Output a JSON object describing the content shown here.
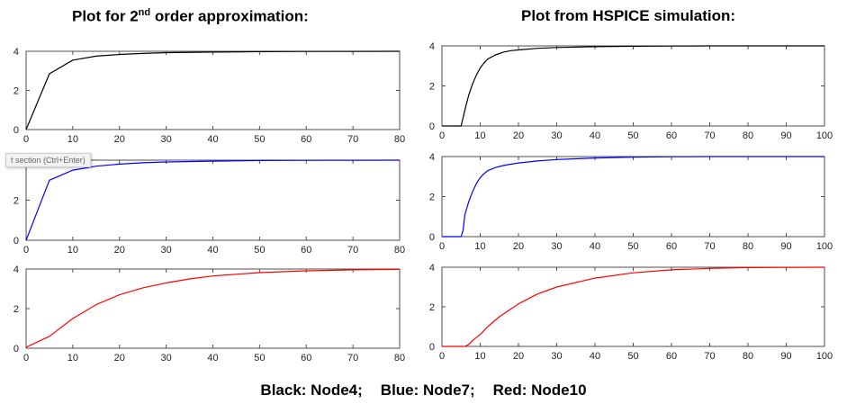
{
  "headings": {
    "left_prefix": "Plot for 2",
    "left_sup": "nd",
    "left_suffix": " order approximation:",
    "right": "Plot from HSPICE simulation:"
  },
  "tooltip": {
    "text": "t section (Ctrl+Enter)"
  },
  "legend_caption": {
    "black": "Black: Node4;",
    "blue": "Blue: Node7;",
    "red": "Red: Node10"
  },
  "colors": {
    "black": "#000000",
    "blue": "#0000ff",
    "red": "#ff0000"
  },
  "chart_data": [
    {
      "type": "line",
      "title": "",
      "xlabel": "",
      "ylabel": "",
      "xlim": [
        0,
        80
      ],
      "ylim": [
        0,
        4
      ],
      "xticks": [
        0,
        10,
        20,
        30,
        40,
        50,
        60,
        70,
        80
      ],
      "yticks": [
        0,
        2,
        4
      ],
      "grid": false,
      "series": [
        {
          "color": "#000000",
          "x": [
            0,
            5,
            10,
            15,
            20,
            25,
            30,
            40,
            50,
            60,
            70,
            80
          ],
          "y": [
            0,
            2.85,
            3.55,
            3.75,
            3.84,
            3.89,
            3.93,
            3.96,
            3.98,
            3.99,
            3.995,
            4.0
          ]
        }
      ]
    },
    {
      "type": "line",
      "title": "",
      "xlabel": "",
      "ylabel": "",
      "xlim": [
        0,
        100
      ],
      "ylim": [
        0,
        4
      ],
      "xticks": [
        0,
        10,
        20,
        30,
        40,
        50,
        60,
        70,
        80,
        90,
        100
      ],
      "yticks": [
        0,
        2,
        4
      ],
      "grid": false,
      "series": [
        {
          "color": "#000000",
          "x": [
            0,
            5,
            6,
            7,
            8,
            9,
            10,
            11,
            12,
            14,
            16,
            18,
            20,
            25,
            30,
            40,
            50,
            60,
            70,
            80,
            90,
            100
          ],
          "y": [
            0,
            0,
            0.8,
            1.55,
            2.1,
            2.55,
            2.9,
            3.15,
            3.35,
            3.55,
            3.68,
            3.76,
            3.8,
            3.88,
            3.92,
            3.96,
            3.98,
            3.99,
            4.0,
            4.0,
            4.0,
            4.0
          ]
        }
      ]
    },
    {
      "type": "line",
      "title": "",
      "xlabel": "",
      "ylabel": "",
      "xlim": [
        0,
        80
      ],
      "ylim": [
        0,
        4
      ],
      "xticks": [
        0,
        10,
        20,
        30,
        40,
        50,
        60,
        70,
        80
      ],
      "yticks": [
        0,
        2,
        4
      ],
      "grid": false,
      "series": [
        {
          "color": "#0000ff",
          "x": [
            0,
            5,
            10,
            15,
            20,
            25,
            30,
            40,
            50,
            60,
            70,
            80
          ],
          "y": [
            0,
            3.0,
            3.5,
            3.7,
            3.8,
            3.87,
            3.91,
            3.95,
            3.98,
            3.99,
            3.995,
            4.0
          ]
        }
      ]
    },
    {
      "type": "line",
      "title": "",
      "xlabel": "",
      "ylabel": "",
      "xlim": [
        0,
        100
      ],
      "ylim": [
        0,
        4
      ],
      "xticks": [
        0,
        10,
        20,
        30,
        40,
        50,
        60,
        70,
        80,
        90,
        100
      ],
      "yticks": [
        0,
        2,
        4
      ],
      "grid": false,
      "series": [
        {
          "color": "#0000ff",
          "x": [
            0,
            5,
            5.5,
            6,
            7,
            8,
            9,
            10,
            11,
            12,
            14,
            16,
            18,
            20,
            25,
            30,
            40,
            50,
            60,
            70,
            80,
            90,
            100
          ],
          "y": [
            0,
            0,
            0.3,
            1.1,
            1.75,
            2.25,
            2.65,
            2.95,
            3.15,
            3.3,
            3.45,
            3.55,
            3.62,
            3.68,
            3.78,
            3.85,
            3.93,
            3.97,
            3.99,
            4.0,
            4.0,
            4.0,
            4.0
          ]
        }
      ]
    },
    {
      "type": "line",
      "title": "",
      "xlabel": "",
      "ylabel": "",
      "xlim": [
        0,
        80
      ],
      "ylim": [
        0,
        4
      ],
      "xticks": [
        0,
        10,
        20,
        30,
        40,
        50,
        60,
        70,
        80
      ],
      "yticks": [
        0,
        2,
        4
      ],
      "grid": false,
      "series": [
        {
          "color": "#ff0000",
          "x": [
            0,
            5,
            10,
            15,
            20,
            25,
            30,
            35,
            40,
            50,
            60,
            70,
            80
          ],
          "y": [
            0.05,
            0.6,
            1.5,
            2.2,
            2.7,
            3.05,
            3.3,
            3.5,
            3.65,
            3.82,
            3.91,
            3.96,
            3.98
          ]
        }
      ]
    },
    {
      "type": "line",
      "title": "",
      "xlabel": "",
      "ylabel": "",
      "xlim": [
        0,
        100
      ],
      "ylim": [
        0,
        4
      ],
      "xticks": [
        0,
        10,
        20,
        30,
        40,
        50,
        60,
        70,
        80,
        90,
        100
      ],
      "yticks": [
        0,
        2,
        4
      ],
      "grid": false,
      "series": [
        {
          "color": "#ff0000",
          "x": [
            0,
            6,
            7,
            8,
            10,
            12,
            15,
            20,
            25,
            30,
            40,
            50,
            60,
            70,
            80,
            90,
            100
          ],
          "y": [
            0,
            0,
            0.1,
            0.3,
            0.6,
            1.0,
            1.5,
            2.15,
            2.65,
            3.0,
            3.45,
            3.72,
            3.87,
            3.94,
            3.98,
            3.99,
            4.0
          ]
        }
      ]
    }
  ]
}
